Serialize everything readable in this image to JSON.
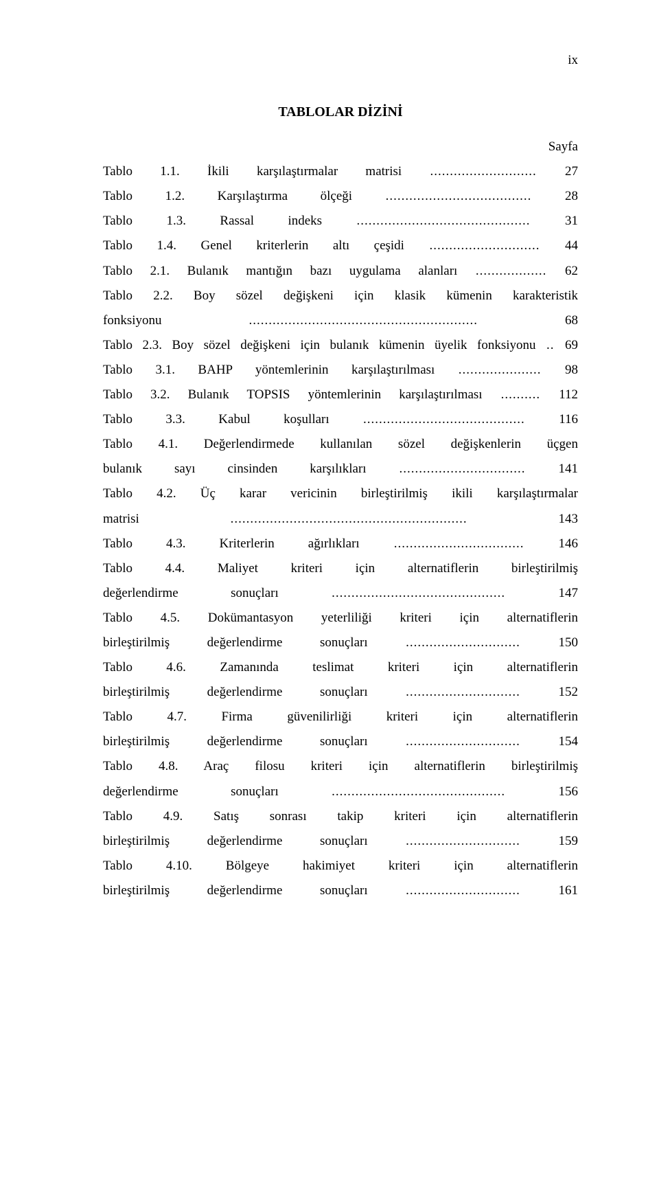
{
  "page": {
    "roman_numeral": "ix",
    "heading": "TABLOLAR DİZİNİ",
    "column_label": "Sayfa"
  },
  "colors": {
    "text": "#000000",
    "background": "#ffffff"
  },
  "typography": {
    "font_family": "Times New Roman",
    "body_font_size_pt": 12,
    "heading_weight": "bold"
  },
  "entries": [
    {
      "label": "Tablo 1.1. İkili karşılaştırmalar matrisi",
      "page": "27"
    },
    {
      "label": "Tablo 1.2. Karşılaştırma ölçeği",
      "page": "28"
    },
    {
      "label": "Tablo 1.3. Rassal indeks",
      "page": "31"
    },
    {
      "label": "Tablo 1.4. Genel kriterlerin altı çeşidi",
      "page": "44"
    },
    {
      "label": "Tablo 2.1. Bulanık mantığın bazı uygulama alanları",
      "page": "62"
    },
    {
      "label": "Tablo 2.2. Boy sözel değişkeni için klasik kümenin karakteristik fonksiyonu",
      "page": "68"
    },
    {
      "label": "Tablo 2.3. Boy sözel değişkeni için bulanık kümenin üyelik fonksiyonu",
      "page": "69"
    },
    {
      "label": "Tablo 3.1. BAHP yöntemlerinin karşılaştırılması",
      "page": "98"
    },
    {
      "label": "Tablo 3.2. Bulanık TOPSIS yöntemlerinin karşılaştırılması",
      "page": "112"
    },
    {
      "label": "Tablo 3.3. Kabul koşulları",
      "page": "116"
    },
    {
      "label": "Tablo 4.1. Değerlendirmede kullanılan sözel değişkenlerin üçgen bulanık sayı cinsinden karşılıkları",
      "page": "141"
    },
    {
      "label": "Tablo 4.2. Üç karar vericinin birleştirilmiş ikili karşılaştırmalar matrisi",
      "page": "143"
    },
    {
      "label": "Tablo 4.3. Kriterlerin ağırlıkları",
      "page": "146"
    },
    {
      "label": "Tablo 4.4. Maliyet kriteri için alternatiflerin birleştirilmiş değerlendirme sonuçları",
      "page": "147"
    },
    {
      "label": "Tablo 4.5. Dokümantasyon yeterliliği kriteri için alternatiflerin birleştirilmiş değerlendirme sonuçları",
      "page": "150"
    },
    {
      "label": "Tablo 4.6. Zamanında teslimat kriteri için alternatiflerin birleştirilmiş değerlendirme sonuçları",
      "page": "152"
    },
    {
      "label": "Tablo 4.7. Firma güvenilirliği kriteri için alternatiflerin birleştirilmiş değerlendirme sonuçları",
      "page": "154"
    },
    {
      "label": "Tablo 4.8. Araç filosu kriteri için alternatiflerin birleştirilmiş değerlendirme sonuçları",
      "page": "156"
    },
    {
      "label": "Tablo 4.9. Satış sonrası takip kriteri için alternatiflerin birleştirilmiş değerlendirme sonuçları",
      "page": "159"
    },
    {
      "label": "Tablo 4.10. Bölgeye hakimiyet kriteri için alternatiflerin birleştirilmiş değerlendirme sonuçları",
      "page": "161"
    }
  ]
}
